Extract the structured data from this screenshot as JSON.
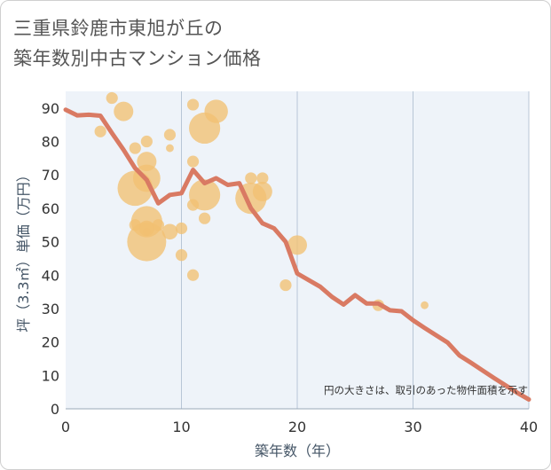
{
  "title": {
    "line1": "三重県鈴鹿市東旭が丘の",
    "line2": "築年数別中古マンション価格"
  },
  "note": "円の大きさは、取引のあった物件面積を示す",
  "chart_data": {
    "type": "scatter",
    "xlabel": "築年数（年）",
    "ylabel": "坪（3.3㎡）単価（万円）",
    "xlim": [
      0,
      40
    ],
    "ylim": [
      0,
      95
    ],
    "xticks": [
      0,
      10,
      20,
      30,
      40
    ],
    "yticks": [
      0,
      10,
      20,
      30,
      40,
      50,
      60,
      70,
      80,
      90
    ],
    "grid": "vertical",
    "bubble_color": "#f2c072",
    "line_color": "#d97a63",
    "points": [
      {
        "x": 3,
        "y": 83,
        "size": 2
      },
      {
        "x": 4,
        "y": 93,
        "size": 2
      },
      {
        "x": 5,
        "y": 89,
        "size": 4
      },
      {
        "x": 6,
        "y": 78,
        "size": 2
      },
      {
        "x": 6,
        "y": 66,
        "size": 8
      },
      {
        "x": 6,
        "y": 55,
        "size": 2
      },
      {
        "x": 7,
        "y": 80,
        "size": 2
      },
      {
        "x": 7,
        "y": 74,
        "size": 4
      },
      {
        "x": 7,
        "y": 69,
        "size": 6
      },
      {
        "x": 7,
        "y": 56,
        "size": 7
      },
      {
        "x": 7,
        "y": 54,
        "size": 3
      },
      {
        "x": 7,
        "y": 53,
        "size": 1
      },
      {
        "x": 7,
        "y": 50,
        "size": 9
      },
      {
        "x": 8,
        "y": 55,
        "size": 2
      },
      {
        "x": 9,
        "y": 82,
        "size": 2
      },
      {
        "x": 9,
        "y": 78,
        "size": 1
      },
      {
        "x": 9,
        "y": 53,
        "size": 3
      },
      {
        "x": 10,
        "y": 54,
        "size": 2
      },
      {
        "x": 10,
        "y": 46,
        "size": 2
      },
      {
        "x": 11,
        "y": 91,
        "size": 2
      },
      {
        "x": 11,
        "y": 74,
        "size": 2
      },
      {
        "x": 11,
        "y": 61,
        "size": 2
      },
      {
        "x": 11,
        "y": 40,
        "size": 2
      },
      {
        "x": 12,
        "y": 84,
        "size": 7
      },
      {
        "x": 12,
        "y": 64,
        "size": 7
      },
      {
        "x": 12,
        "y": 57,
        "size": 2
      },
      {
        "x": 13,
        "y": 89,
        "size": 5
      },
      {
        "x": 16,
        "y": 69,
        "size": 2
      },
      {
        "x": 16,
        "y": 63,
        "size": 7
      },
      {
        "x": 17,
        "y": 69,
        "size": 2
      },
      {
        "x": 17,
        "y": 65,
        "size": 4
      },
      {
        "x": 19,
        "y": 37,
        "size": 2
      },
      {
        "x": 20,
        "y": 49,
        "size": 4
      },
      {
        "x": 27,
        "y": 31,
        "size": 2
      },
      {
        "x": 31,
        "y": 31,
        "size": 1
      }
    ],
    "trend": {
      "x": [
        0,
        1,
        2,
        3,
        4,
        5,
        6,
        7,
        8,
        9,
        10,
        11,
        12,
        13,
        14,
        15,
        16,
        17,
        18,
        19,
        20,
        21,
        22,
        23,
        24,
        25,
        26,
        27,
        28,
        29,
        30,
        31,
        32,
        33,
        34,
        35,
        36,
        37,
        38,
        39,
        40
      ],
      "y": [
        89.5,
        87.8,
        88,
        87.7,
        82.5,
        77.5,
        72,
        68.5,
        61.5,
        64,
        64.5,
        71.5,
        67.5,
        69,
        67,
        67.5,
        60,
        55.5,
        54,
        50,
        40.5,
        38.5,
        36.5,
        33.5,
        31.2,
        34,
        31.5,
        31.5,
        29.5,
        29.2,
        26.5,
        24.2,
        22,
        19.8,
        16,
        13.8,
        11.5,
        9.2,
        7,
        4.8,
        2.8
      ]
    }
  }
}
